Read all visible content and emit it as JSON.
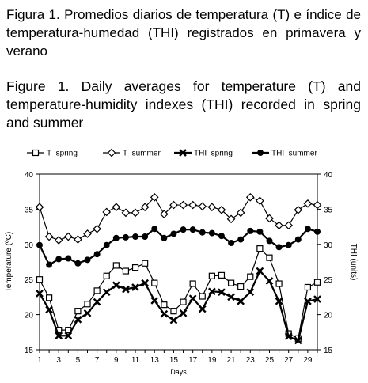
{
  "caption_es": "Figura 1.  Promedios diarios de temperatura (T) e índice de temperatura-humedad (THI) registrados en primavera y verano",
  "caption_en": "Figure 1.  Daily averages for temperature (T) and temperature-humidity indexes (THI) recorded in spring and summer",
  "chart_data": {
    "type": "line",
    "title": "",
    "xlabel": "Days",
    "ylabel": "Temperature (ºC)",
    "ylabel_right": "THI (units)",
    "x": [
      1,
      2,
      3,
      4,
      5,
      6,
      7,
      8,
      9,
      10,
      11,
      12,
      13,
      14,
      15,
      16,
      17,
      18,
      19,
      20,
      21,
      22,
      23,
      24,
      25,
      26,
      27,
      28,
      29,
      30
    ],
    "x_ticks": [
      1,
      3,
      5,
      7,
      9,
      11,
      13,
      15,
      17,
      19,
      21,
      23,
      25,
      27,
      29
    ],
    "xlim": [
      1,
      30
    ],
    "ylim": [
      15,
      40
    ],
    "ylim_right": [
      15,
      40
    ],
    "y_ticks": [
      15,
      20,
      25,
      30,
      35,
      40
    ],
    "grid": false,
    "legend_position": "top",
    "series": [
      {
        "name": "T_spring",
        "marker": "square-open",
        "axis": "left",
        "values": [
          25.0,
          22.4,
          17.8,
          17.8,
          20.5,
          21.5,
          23.4,
          25.5,
          27.0,
          26.2,
          26.7,
          27.3,
          24.5,
          21.4,
          20.5,
          21.8,
          24.4,
          22.6,
          25.5,
          25.6,
          24.5,
          24.0,
          25.4,
          29.4,
          28.1,
          24.4,
          17.3,
          16.6,
          23.9,
          24.6
        ]
      },
      {
        "name": "T_summer",
        "marker": "diamond-open",
        "axis": "left",
        "values": [
          35.3,
          31.1,
          30.6,
          31.1,
          30.7,
          31.5,
          32.2,
          34.6,
          35.3,
          34.5,
          34.5,
          35.3,
          36.7,
          34.3,
          35.6,
          35.6,
          35.6,
          35.4,
          35.3,
          34.9,
          33.6,
          34.5,
          36.7,
          36.2,
          33.7,
          32.7,
          32.7,
          34.9,
          35.8,
          35.6
        ]
      },
      {
        "name": "THI_spring",
        "marker": "x",
        "axis": "right",
        "values": [
          23.0,
          20.7,
          17.0,
          17.0,
          19.3,
          20.2,
          21.8,
          23.2,
          24.2,
          23.6,
          23.9,
          24.5,
          22.0,
          20.1,
          19.2,
          20.2,
          22.3,
          20.8,
          23.3,
          23.2,
          22.5,
          21.9,
          23.2,
          26.2,
          24.8,
          21.9,
          16.9,
          16.3,
          21.9,
          22.2
        ]
      },
      {
        "name": "THI_summer",
        "marker": "circle-filled",
        "axis": "right",
        "values": [
          29.9,
          27.1,
          27.9,
          28.0,
          27.3,
          27.8,
          28.6,
          29.9,
          30.9,
          31.0,
          31.1,
          31.1,
          32.2,
          30.9,
          31.5,
          32.1,
          32.1,
          31.7,
          31.6,
          31.2,
          30.2,
          30.7,
          31.9,
          31.8,
          30.5,
          29.6,
          29.9,
          30.7,
          32.2,
          31.8
        ]
      }
    ]
  }
}
